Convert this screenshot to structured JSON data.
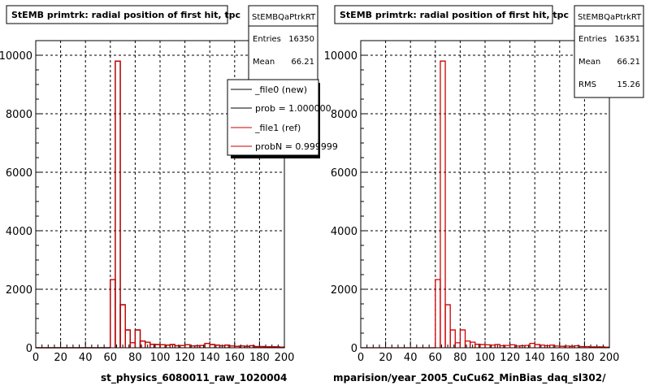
{
  "panels": [
    {
      "title": "StEMB primtrk: radial position of first hit, tpc",
      "stats": {
        "name": "StEMBQaPtrkRT",
        "rows": [
          {
            "label": "Entries",
            "value": "16350"
          },
          {
            "label": "Mean",
            "value": "66.21"
          }
        ]
      },
      "legend": [
        {
          "text": "_file0 (new)",
          "color": "#000000"
        },
        {
          "text": "prob = 1.000000",
          "color": "#000000"
        },
        {
          "text": "_file1 (ref)",
          "color": "#cc0000"
        },
        {
          "text": "probN = 0.999999",
          "color": "#cc0000"
        }
      ],
      "xlabel": "st_physics_6080011_raw_1020004"
    },
    {
      "title": "StEMB primtrk: radial position of first hit, tpc",
      "stats": {
        "name": "StEMBQaPtrkRT",
        "rows": [
          {
            "label": "Entries",
            "value": "16351"
          },
          {
            "label": "Mean",
            "value": "66.21"
          },
          {
            "label": "RMS",
            "value": "15.26"
          }
        ]
      },
      "legend": [],
      "xlabel": "mparision/year_2005_CuCu62_MinBias_daq_sl302/"
    }
  ],
  "footer_text": "",
  "chart_data": [
    {
      "type": "bar",
      "title": "StEMB primtrk: radial position of first hit, tpc",
      "xlabel": "st_physics_6080011_raw_1020004",
      "ylabel": "",
      "xlim": [
        0,
        200
      ],
      "ylim": [
        0,
        10500
      ],
      "xticks": [
        0,
        20,
        40,
        60,
        80,
        100,
        120,
        140,
        160,
        180,
        200
      ],
      "yticks": [
        0,
        2000,
        4000,
        6000,
        8000,
        10000
      ],
      "grid": true,
      "bin_width": 4,
      "bin_edges_start": 0,
      "series": [
        {
          "name": "_file0 (new)",
          "color": "#000000",
          "values": [
            0,
            0,
            0,
            0,
            0,
            0,
            0,
            0,
            0,
            0,
            0,
            0,
            0,
            0,
            0,
            2330,
            9800,
            1470,
            610,
            170,
            610,
            230,
            190,
            120,
            110,
            100,
            90,
            110,
            70,
            80,
            100,
            60,
            70,
            80,
            150,
            110,
            90,
            70,
            90,
            60,
            50,
            60,
            50,
            70,
            40,
            40,
            30,
            30,
            30,
            20
          ]
        },
        {
          "name": "_file1 (ref)",
          "color": "#cc0000",
          "values": [
            0,
            0,
            0,
            0,
            0,
            0,
            0,
            0,
            0,
            0,
            0,
            0,
            0,
            0,
            0,
            2330,
            9800,
            1470,
            610,
            170,
            610,
            230,
            190,
            120,
            110,
            100,
            90,
            110,
            70,
            80,
            100,
            60,
            70,
            80,
            150,
            110,
            90,
            70,
            90,
            60,
            50,
            60,
            50,
            70,
            40,
            40,
            30,
            30,
            30,
            20
          ]
        }
      ]
    },
    {
      "type": "bar",
      "title": "StEMB primtrk: radial position of first hit, tpc",
      "xlabel": "mparision/year_2005_CuCu62_MinBias_daq_sl302/",
      "ylabel": "",
      "xlim": [
        0,
        200
      ],
      "ylim": [
        0,
        10500
      ],
      "xticks": [
        0,
        20,
        40,
        60,
        80,
        100,
        120,
        140,
        160,
        180,
        200
      ],
      "yticks": [
        0,
        2000,
        4000,
        6000,
        8000,
        10000
      ],
      "grid": true,
      "bin_width": 4,
      "bin_edges_start": 0,
      "series": [
        {
          "name": "StEMBQaPtrkRT",
          "color": "#cc0000",
          "values": [
            0,
            0,
            0,
            0,
            0,
            0,
            0,
            0,
            0,
            0,
            0,
            0,
            0,
            0,
            0,
            2330,
            9800,
            1470,
            610,
            170,
            610,
            230,
            190,
            120,
            110,
            100,
            90,
            110,
            70,
            80,
            100,
            60,
            70,
            80,
            150,
            110,
            90,
            70,
            90,
            60,
            50,
            60,
            50,
            70,
            40,
            40,
            30,
            30,
            30,
            20
          ]
        }
      ]
    }
  ]
}
